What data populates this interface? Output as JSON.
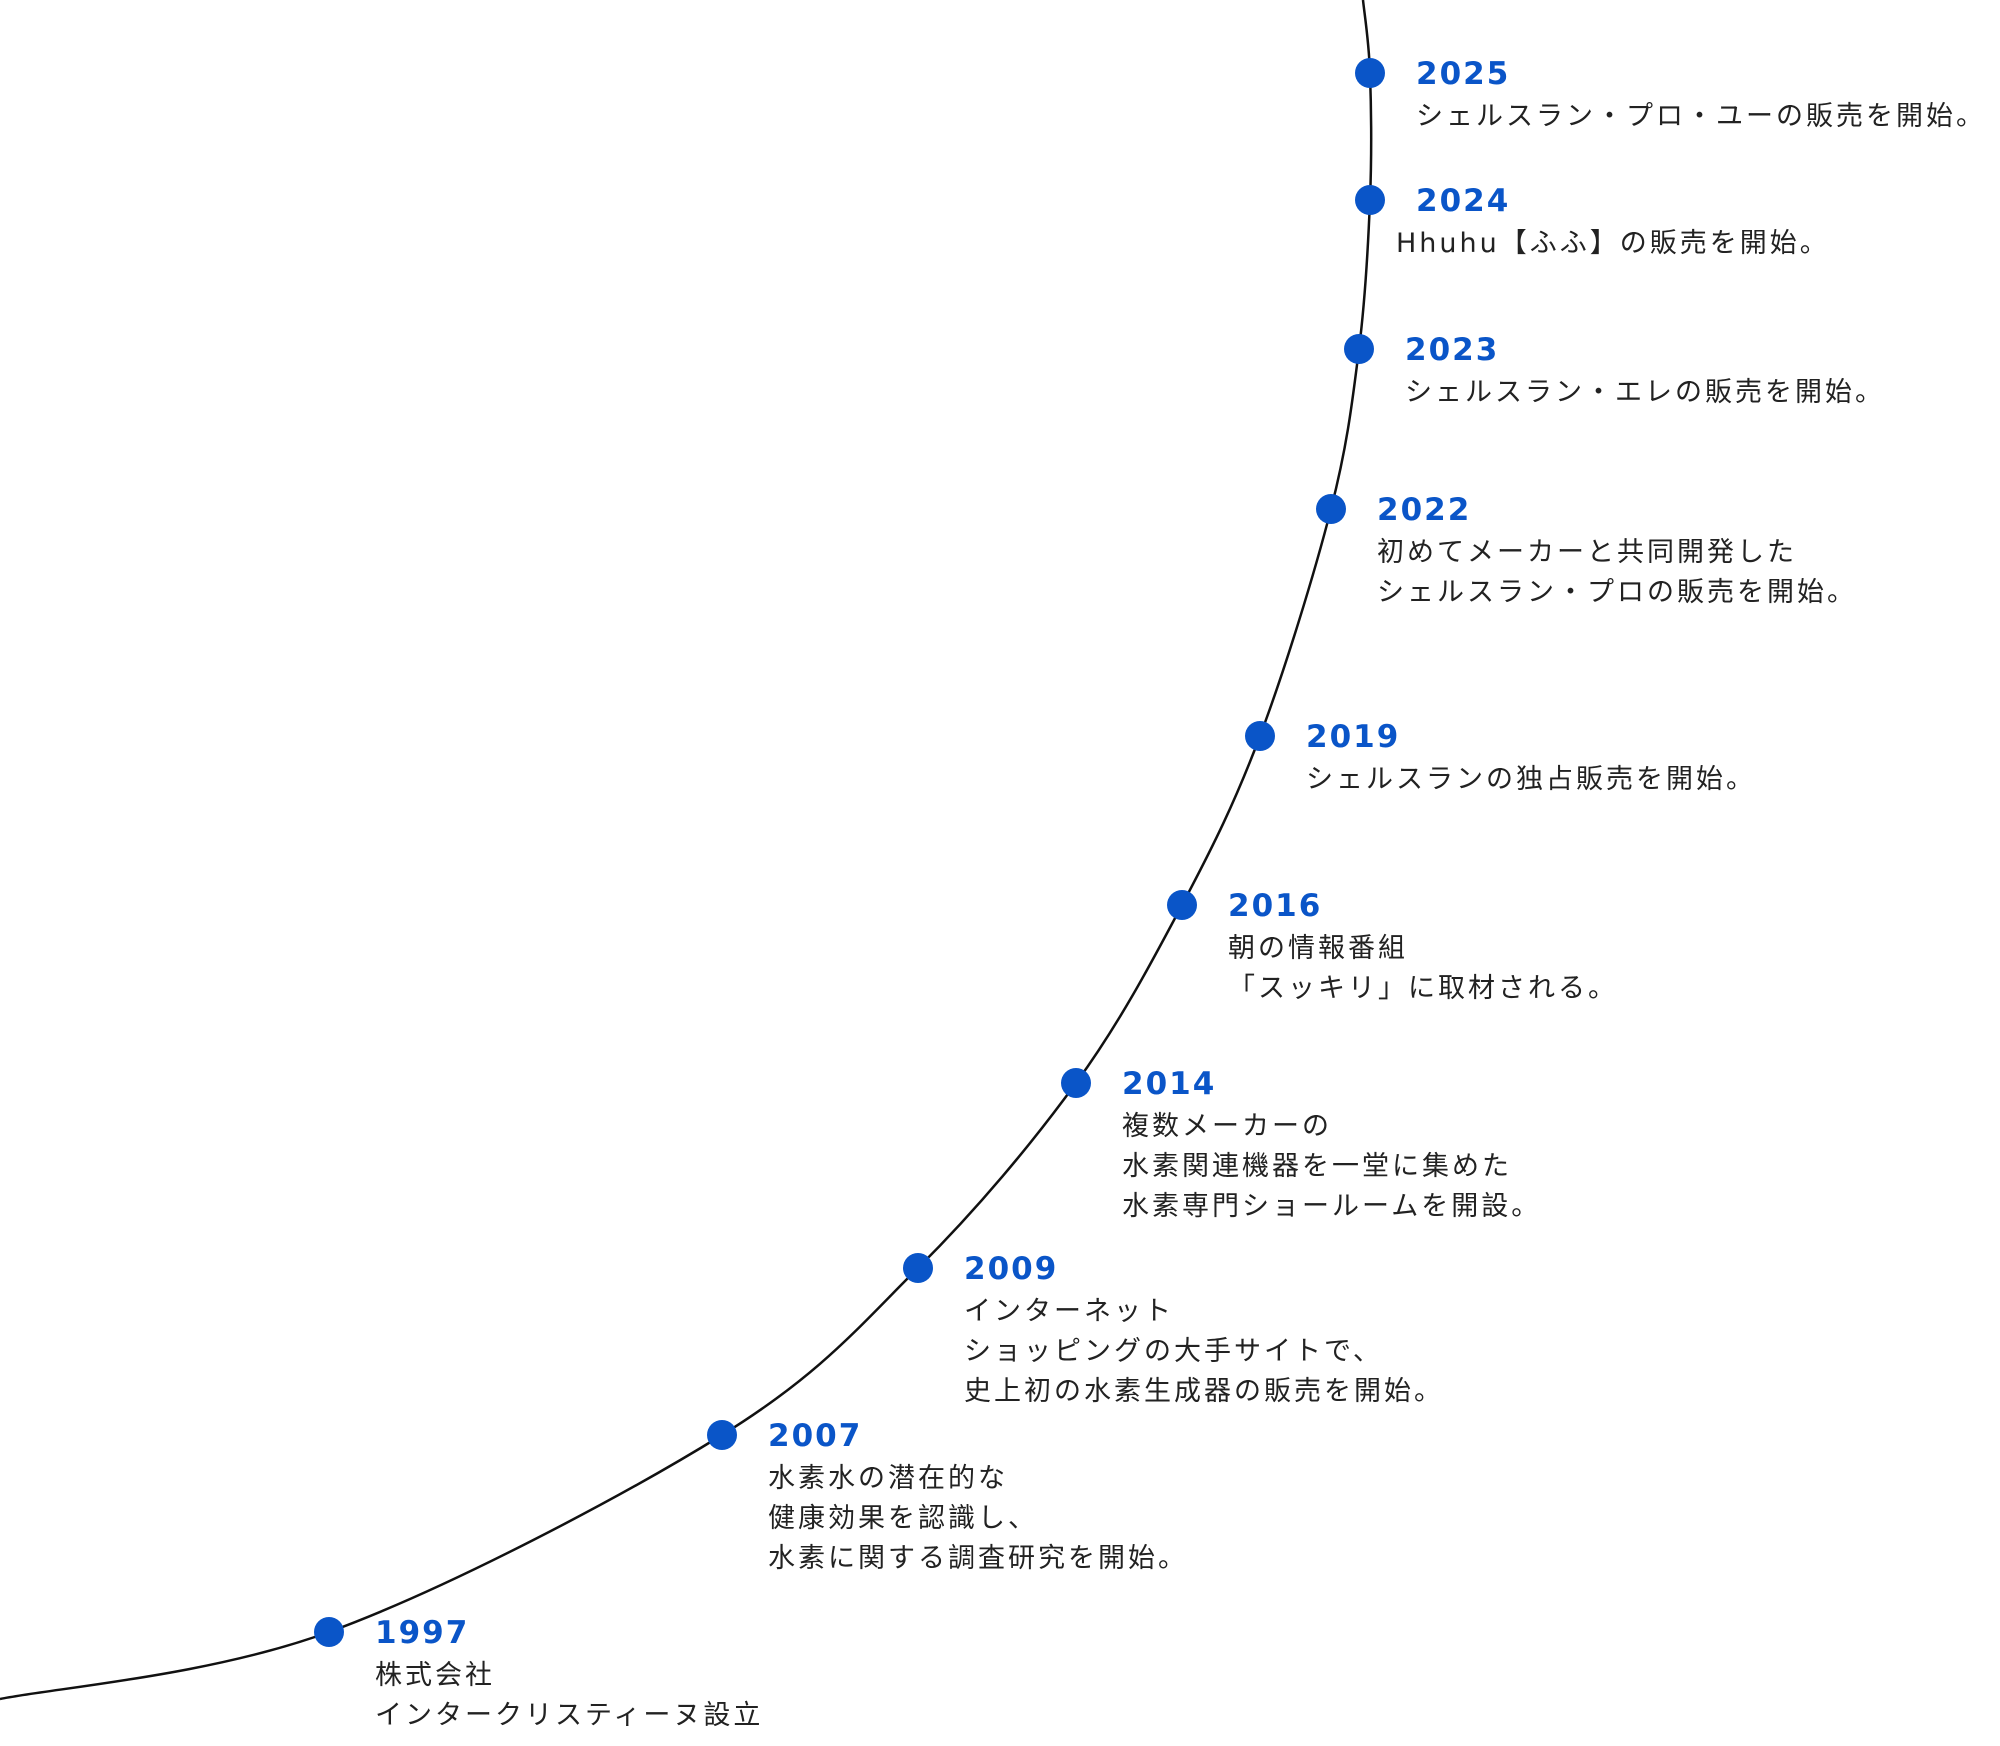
{
  "timeline": [
    {
      "year": "2025",
      "lines": [
        "シェルスラン・プロ・ユーの販売を開始。"
      ]
    },
    {
      "year": "2024",
      "lines": [
        "Hhuhu【ふふ】の販売を開始。"
      ]
    },
    {
      "year": "2023",
      "lines": [
        "シェルスラン・エレの販売を開始。"
      ]
    },
    {
      "year": "2022",
      "lines": [
        "初めてメーカーと共同開発した",
        "シェルスラン・プロの販売を開始。"
      ]
    },
    {
      "year": "2019",
      "lines": [
        "シェルスランの独占販売を開始。"
      ]
    },
    {
      "year": "2016",
      "lines": [
        "朝の情報番組",
        "「スッキリ」に取材される。"
      ]
    },
    {
      "year": "2014",
      "lines": [
        "複数メーカーの",
        "水素関連機器を一堂に集めた",
        "水素専門ショールームを開設。"
      ]
    },
    {
      "year": "2009",
      "lines": [
        "インターネット",
        "ショッピングの大手サイトで、",
        "史上初の水素生成器の販売を開始。"
      ]
    },
    {
      "year": "2007",
      "lines": [
        "水素水の潜在的な",
        "健康効果を認識し、",
        "水素に関する調査研究を開始。"
      ]
    },
    {
      "year": "1997",
      "lines": [
        "株式会社",
        "インタークリスティーヌ設立"
      ]
    }
  ]
}
